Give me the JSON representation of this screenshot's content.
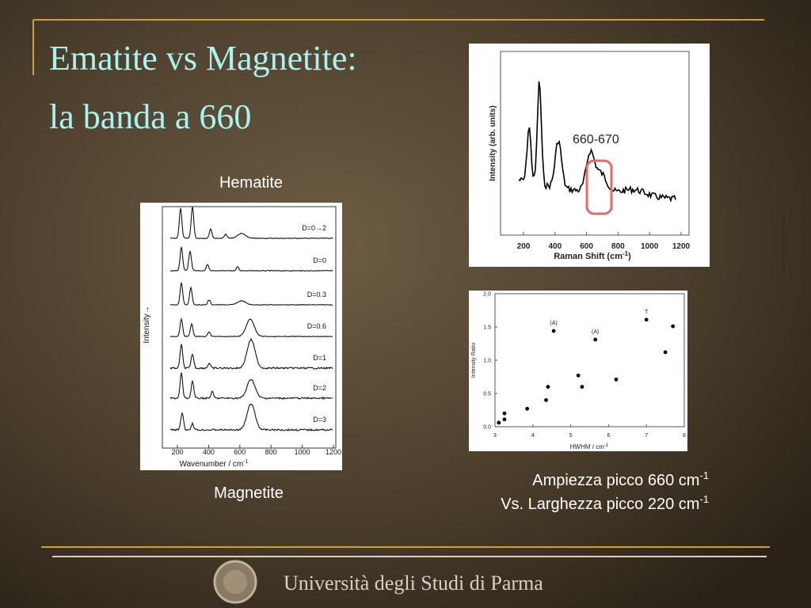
{
  "title": [
    "Ematite vs Magnetite:",
    "la banda a 660"
  ],
  "hematite_label": "Hematite",
  "magnetite_label": "Magnetite",
  "caption": [
    {
      "text": "Ampiezza picco 660 cm",
      "sup": "-1"
    },
    {
      "text": "Vs. Larghezza picco 220 cm",
      "sup": "-1"
    }
  ],
  "footer": "Università degli Studi di Parma",
  "hematite_plot": {
    "x_label": {
      "text": "Raman Shift (cm",
      "sup": "-1",
      "end": ")"
    },
    "y_label": "Intensity (arb. units)",
    "annotation": "660-670",
    "xticks": [
      200,
      400,
      600,
      800,
      1000,
      1200
    ]
  },
  "magnetite_plot": {
    "x_label": {
      "text": "Wavenumber / cm",
      "sup": "-1"
    },
    "y_label": "Intensity→",
    "traces": [
      "D=0→2",
      "D=0",
      "D=0.3",
      "D=0.6",
      "D=1",
      "D=2",
      "D=3"
    ],
    "xticks": [
      200,
      400,
      600,
      800,
      1000,
      1200
    ]
  },
  "chart_data": {
    "type": "scatter",
    "x_label": {
      "text": "HWHM / cm",
      "sup": "-1"
    },
    "y_label": "Intensity Ratio",
    "x": [
      3.1,
      3.25,
      3.25,
      3.85,
      4.35,
      4.4,
      4.55,
      5.2,
      5.3,
      5.65,
      6.2,
      7.0,
      7.5,
      7.7
    ],
    "values": [
      0.06,
      0.2,
      0.11,
      0.27,
      0.4,
      0.6,
      1.44,
      0.77,
      0.6,
      1.31,
      0.71,
      1.61,
      1.12,
      1.51
    ],
    "annotations": [
      "(A)",
      "(A)",
      "T"
    ],
    "xlim": [
      3,
      8
    ],
    "ylim": [
      0,
      2
    ],
    "xticks": [
      3,
      4,
      5,
      6,
      7,
      8
    ],
    "yticks": [
      {
        "value": 0,
        "label": "0.0"
      },
      {
        "value": 0.5,
        "label": "0.5"
      },
      {
        "value": 1,
        "label": "1.0"
      },
      {
        "value": 1.5,
        "label": "1.5"
      },
      {
        "value": 2,
        "label": "2.0"
      }
    ],
    "color": "#000000"
  }
}
